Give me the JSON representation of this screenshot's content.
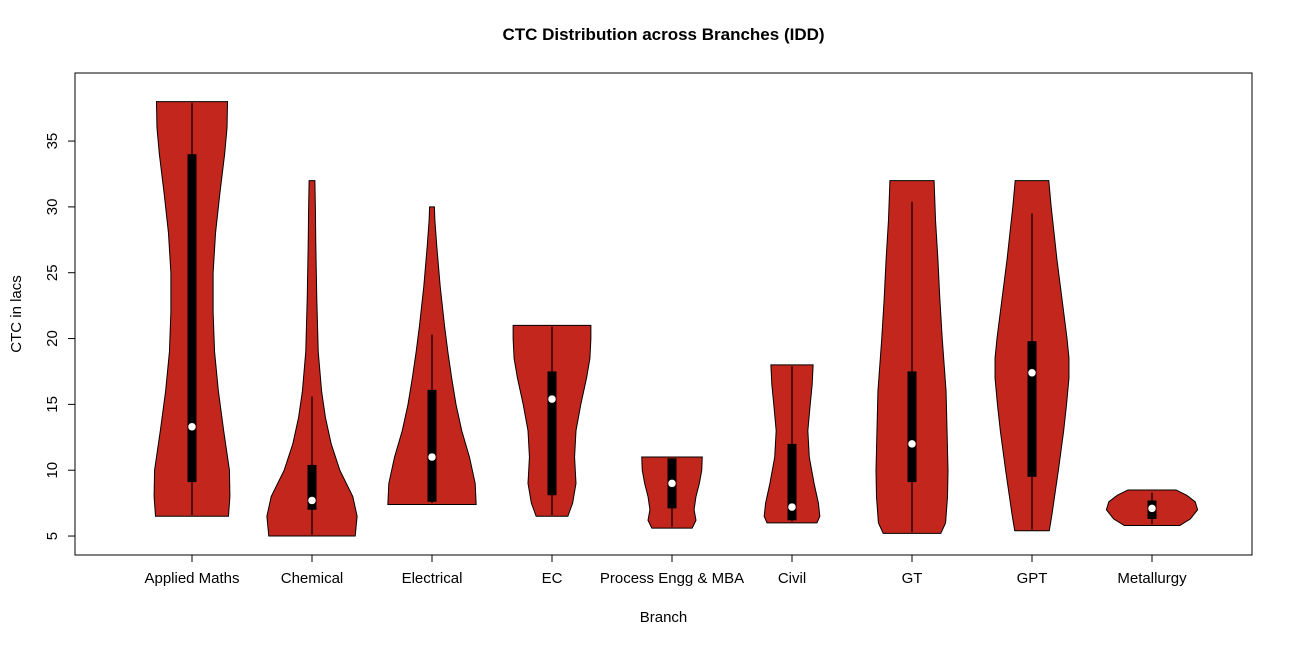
{
  "chart_data": {
    "type": "violin",
    "title": "CTC Distribution across Branches (IDD)",
    "xlabel": "Branch",
    "ylabel": "CTC in lacs",
    "yticks": [
      5,
      10,
      15,
      20,
      25,
      30,
      35
    ],
    "ylim": [
      3.56,
      40.17
    ],
    "grid": false,
    "legend": "none",
    "colors": {
      "violin_fill": "#C3261D",
      "outline": "#000000",
      "box": "#000000",
      "median_dot": "#FFFFFF",
      "background": "#FFFFFF"
    },
    "branches": [
      {
        "label": "Applied Maths",
        "stats": {
          "median": 13.3,
          "q1": 9.1,
          "q3": 34.0,
          "whisker_low": 6.6,
          "whisker_high": 37.9,
          "min": 6.5,
          "max": 38
        },
        "shape": [
          [
            6.5,
            0.76
          ],
          [
            8,
            0.79
          ],
          [
            10,
            0.78
          ],
          [
            13,
            0.66
          ],
          [
            16,
            0.55
          ],
          [
            19,
            0.47
          ],
          [
            22,
            0.44
          ],
          [
            25,
            0.44
          ],
          [
            28,
            0.49
          ],
          [
            31,
            0.58
          ],
          [
            34,
            0.68
          ],
          [
            36,
            0.73
          ],
          [
            38,
            0.74
          ]
        ]
      },
      {
        "label": "Chemical",
        "stats": {
          "median": 7.7,
          "q1": 7.0,
          "q3": 10.4,
          "whisker_low": 5.1,
          "whisker_high": 15.6,
          "min": 5.0,
          "max": 32
        },
        "shape": [
          [
            5.0,
            0.9
          ],
          [
            6.5,
            0.94
          ],
          [
            8,
            0.85
          ],
          [
            10,
            0.58
          ],
          [
            12,
            0.4
          ],
          [
            14,
            0.28
          ],
          [
            16,
            0.2
          ],
          [
            19,
            0.13
          ],
          [
            23,
            0.1
          ],
          [
            27,
            0.08
          ],
          [
            30,
            0.07
          ],
          [
            32,
            0.06
          ]
        ]
      },
      {
        "label": "Electrical",
        "stats": {
          "median": 11.0,
          "q1": 7.6,
          "q3": 16.1,
          "whisker_low": 7.5,
          "whisker_high": 20.3,
          "min": 7.4,
          "max": 30
        },
        "shape": [
          [
            7.4,
            0.92
          ],
          [
            9,
            0.9
          ],
          [
            11,
            0.78
          ],
          [
            13,
            0.62
          ],
          [
            15,
            0.5
          ],
          [
            17,
            0.41
          ],
          [
            19,
            0.33
          ],
          [
            21,
            0.26
          ],
          [
            24,
            0.17
          ],
          [
            27,
            0.1
          ],
          [
            29,
            0.06
          ],
          [
            30,
            0.05
          ]
        ]
      },
      {
        "label": "EC",
        "stats": {
          "median": 15.4,
          "q1": 8.1,
          "q3": 17.5,
          "whisker_low": 6.6,
          "whisker_high": 20.9,
          "min": 6.5,
          "max": 21
        },
        "shape": [
          [
            6.5,
            0.33
          ],
          [
            7.5,
            0.43
          ],
          [
            9,
            0.5
          ],
          [
            11,
            0.47
          ],
          [
            13,
            0.5
          ],
          [
            15,
            0.6
          ],
          [
            17,
            0.72
          ],
          [
            18.5,
            0.79
          ],
          [
            20,
            0.81
          ],
          [
            21,
            0.81
          ]
        ]
      },
      {
        "label": "Process Engg & MBA",
        "stats": {
          "median": 9.0,
          "q1": 7.1,
          "q3": 10.9,
          "whisker_low": 5.7,
          "whisker_high": 10.9,
          "min": 5.6,
          "max": 11
        },
        "shape": [
          [
            5.6,
            0.42
          ],
          [
            6.2,
            0.5
          ],
          [
            7,
            0.46
          ],
          [
            8,
            0.5
          ],
          [
            9,
            0.57
          ],
          [
            10,
            0.62
          ],
          [
            11,
            0.63
          ]
        ]
      },
      {
        "label": "Civil",
        "stats": {
          "median": 7.2,
          "q1": 6.2,
          "q3": 12.0,
          "whisker_low": 6.1,
          "whisker_high": 17.9,
          "min": 6.0,
          "max": 18
        },
        "shape": [
          [
            6.0,
            0.52
          ],
          [
            6.5,
            0.58
          ],
          [
            7.5,
            0.55
          ],
          [
            9,
            0.46
          ],
          [
            11,
            0.36
          ],
          [
            13,
            0.33
          ],
          [
            15,
            0.38
          ],
          [
            16.5,
            0.42
          ],
          [
            18,
            0.44
          ]
        ]
      },
      {
        "label": "GT",
        "stats": {
          "median": 12.0,
          "q1": 9.1,
          "q3": 17.5,
          "whisker_low": 5.3,
          "whisker_high": 30.4,
          "min": 5.2,
          "max": 32
        },
        "shape": [
          [
            5.2,
            0.6
          ],
          [
            6,
            0.7
          ],
          [
            8,
            0.74
          ],
          [
            10,
            0.75
          ],
          [
            13,
            0.73
          ],
          [
            16,
            0.71
          ],
          [
            18,
            0.67
          ],
          [
            20,
            0.63
          ],
          [
            23,
            0.58
          ],
          [
            26,
            0.54
          ],
          [
            29,
            0.49
          ],
          [
            31,
            0.47
          ],
          [
            32,
            0.46
          ]
        ]
      },
      {
        "label": "GPT",
        "stats": {
          "median": 17.4,
          "q1": 9.5,
          "q3": 19.8,
          "whisker_low": 5.5,
          "whisker_high": 29.5,
          "min": 5.4,
          "max": 32
        },
        "shape": [
          [
            5.4,
            0.36
          ],
          [
            6.5,
            0.41
          ],
          [
            8,
            0.47
          ],
          [
            10,
            0.55
          ],
          [
            13,
            0.66
          ],
          [
            15,
            0.72
          ],
          [
            17,
            0.77
          ],
          [
            18.5,
            0.77
          ],
          [
            20,
            0.73
          ],
          [
            22,
            0.66
          ],
          [
            24,
            0.59
          ],
          [
            26,
            0.52
          ],
          [
            28,
            0.46
          ],
          [
            30,
            0.4
          ],
          [
            32,
            0.35
          ]
        ]
      },
      {
        "label": "Metallurgy",
        "stats": {
          "median": 7.1,
          "q1": 6.3,
          "q3": 7.7,
          "whisker_low": 5.9,
          "whisker_high": 8.3,
          "min": 5.8,
          "max": 8.5
        },
        "shape": [
          [
            5.8,
            0.58
          ],
          [
            6.3,
            0.8
          ],
          [
            7,
            0.95
          ],
          [
            7.6,
            0.9
          ],
          [
            8.1,
            0.72
          ],
          [
            8.5,
            0.5
          ]
        ]
      }
    ]
  }
}
